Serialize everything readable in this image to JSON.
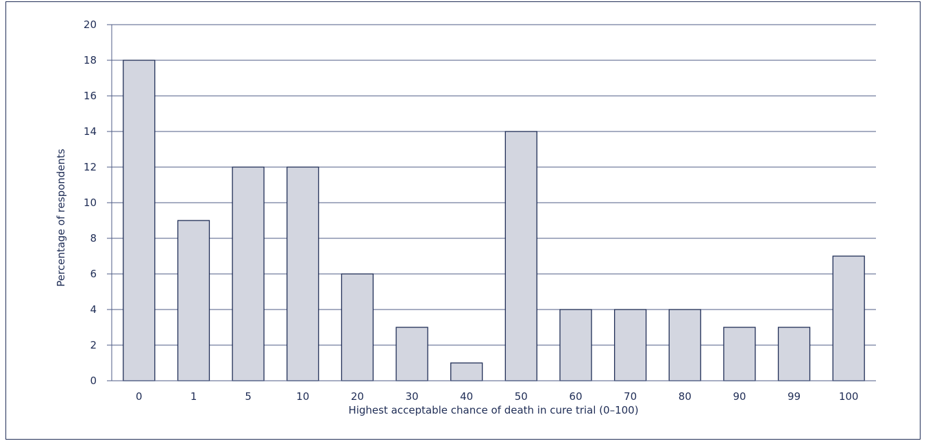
{
  "chart_data": {
    "type": "bar",
    "categories": [
      "0",
      "1",
      "5",
      "10",
      "20",
      "30",
      "40",
      "50",
      "60",
      "70",
      "80",
      "90",
      "99",
      "100"
    ],
    "series": [
      {
        "values": [
          18,
          9,
          12,
          12,
          6,
          3,
          1,
          14,
          4,
          4,
          4,
          3,
          3,
          7
        ]
      }
    ],
    "xlabel": "Highest acceptable chance of death in cure trial (0–100)",
    "ylabel": "Percentage of respondents",
    "ylim": [
      0,
      20
    ],
    "yticks": [
      0,
      2,
      4,
      6,
      8,
      10,
      12,
      14,
      16,
      18,
      20
    ],
    "grid": true,
    "legend": "none",
    "colors": {
      "bar_fill": "#d3d6e0",
      "bar_stroke": "#1e2c55",
      "grid": "#4d5b85",
      "text": "#1e2c55",
      "frame": "#1e2c55"
    }
  }
}
